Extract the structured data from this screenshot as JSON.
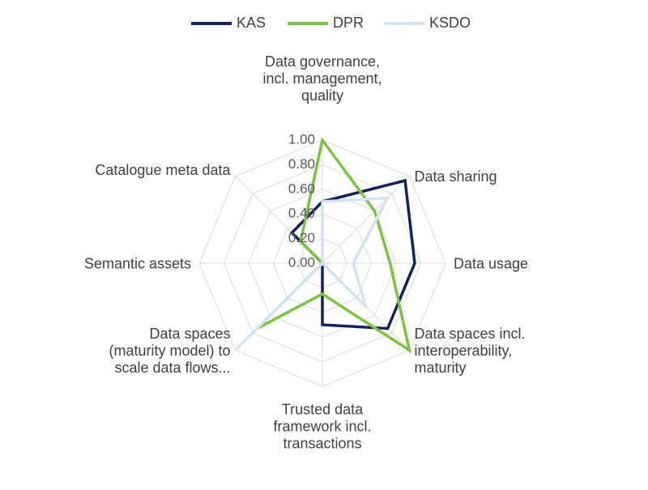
{
  "chart_data": {
    "type": "radar",
    "categories": [
      [
        "Data governance,",
        "incl. management,",
        "quality"
      ],
      [
        "Data sharing"
      ],
      [
        "Data usage"
      ],
      [
        "Data spaces incl.",
        "interoperability,",
        "maturity"
      ],
      [
        "Trusted data",
        "framework incl.",
        "transactions"
      ],
      [
        "Data spaces",
        "(maturity model) to",
        "scale data flows..."
      ],
      [
        "Semantic assets"
      ],
      [
        "Catalogue meta data"
      ]
    ],
    "series": [
      {
        "name": "KAS",
        "color": "#13235b",
        "values": [
          0.5,
          0.95,
          0.75,
          0.75,
          0.5,
          0.0,
          0.0,
          0.35
        ]
      },
      {
        "name": "DPR",
        "color": "#7dc242",
        "values": [
          1.0,
          0.6,
          0.55,
          1.0,
          0.25,
          0.75,
          0.0,
          0.25
        ]
      },
      {
        "name": "KSDO",
        "color": "#d4e2f4",
        "values": [
          0.5,
          0.75,
          0.25,
          0.5,
          0.0,
          1.0,
          0.0,
          0.0
        ]
      }
    ],
    "rlim": [
      0,
      1
    ],
    "ticks": [
      "0.00",
      "0.20",
      "0.40",
      "0.60",
      "0.80",
      "1.00"
    ],
    "grid": true,
    "legend_position": "top"
  }
}
